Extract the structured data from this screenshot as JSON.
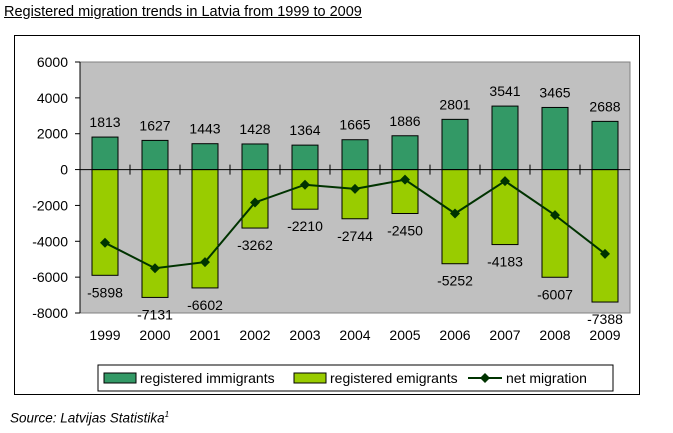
{
  "page": {
    "title": "Registered migration trends in Latvia from 1999 to 2009",
    "source_label": "Source: Latvijas Statistika",
    "source_sup": "1"
  },
  "colors": {
    "plot_bg": "#c0c0c0",
    "immigrants": "#339966",
    "emigrants": "#99cc00",
    "net": "#003300"
  },
  "chart_data": {
    "type": "bar",
    "title": "Registered migration trends in Latvia from 1999 to 2009",
    "xlabel": "",
    "ylabel": "",
    "categories": [
      "1999",
      "2000",
      "2001",
      "2002",
      "2003",
      "2004",
      "2005",
      "2006",
      "2007",
      "2008",
      "2009"
    ],
    "ylim": [
      -8000,
      6000
    ],
    "yticks": [
      6000,
      4000,
      2000,
      0,
      -2000,
      -4000,
      -6000,
      -8000
    ],
    "grid": false,
    "legend_position": "bottom",
    "series": [
      {
        "name": "registered immigrants",
        "kind": "bar",
        "values": [
          1813,
          1627,
          1443,
          1428,
          1364,
          1665,
          1886,
          2801,
          3541,
          3465,
          2688
        ]
      },
      {
        "name": "registered emigrants",
        "kind": "bar",
        "values": [
          -5898,
          -7131,
          -6602,
          -3262,
          -2210,
          -2744,
          -2450,
          -5252,
          -4183,
          -6007,
          -7388
        ]
      },
      {
        "name": "net migration",
        "kind": "line",
        "values": [
          -4085,
          -5504,
          -5159,
          -1834,
          -846,
          -1079,
          -564,
          -2451,
          -642,
          -2542,
          -4700
        ]
      }
    ]
  }
}
